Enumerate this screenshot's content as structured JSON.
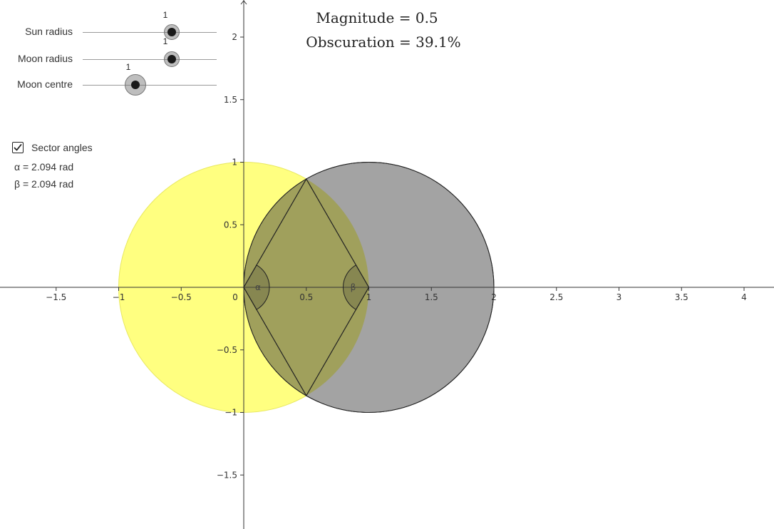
{
  "sliders": [
    {
      "label": "Sun radius",
      "value_label": "1",
      "value": 1
    },
    {
      "label": "Moon radius",
      "value_label": "1",
      "value": 1
    },
    {
      "label": "Moon centre",
      "value_label": "1",
      "value": 1
    }
  ],
  "results": {
    "magnitude": "Magnitude = 0.5",
    "obscuration": "Obscuration = 39.1%"
  },
  "sector_angles": {
    "label": "Sector angles",
    "checked": true,
    "alpha": "α = 2.094 rad",
    "beta": "β = 2.094 rad"
  },
  "angle_marks": {
    "alpha": "α",
    "beta": "β"
  },
  "axes": {
    "x_ticks": [
      "−1.5",
      "−1",
      "−0.5",
      "0",
      "0.5",
      "1",
      "1.5",
      "2",
      "2.5",
      "3",
      "3.5",
      "4"
    ],
    "x_tick_values": [
      -1.5,
      -1,
      -0.5,
      0,
      0.5,
      1,
      1.5,
      2,
      2.5,
      3,
      3.5,
      4
    ],
    "y_ticks": [
      "2",
      "1.5",
      "1",
      "0.5",
      "−0.5",
      "−1",
      "−1.5"
    ],
    "y_tick_values": [
      2,
      1.5,
      1,
      0.5,
      -0.5,
      -1,
      -1.5
    ]
  },
  "geometry": {
    "sun": {
      "cx": 0,
      "cy": 0,
      "r": 1
    },
    "moon": {
      "cx": 1,
      "cy": 0,
      "r": 1
    },
    "intersection_points": [
      [
        0.5,
        0.866
      ],
      [
        0.5,
        -0.866
      ]
    ]
  },
  "colors": {
    "sun_fill": "#ffff80",
    "moon_fill": "#a3a3a3",
    "overlap_fill": "#a0a050",
    "outline": "#222222"
  }
}
